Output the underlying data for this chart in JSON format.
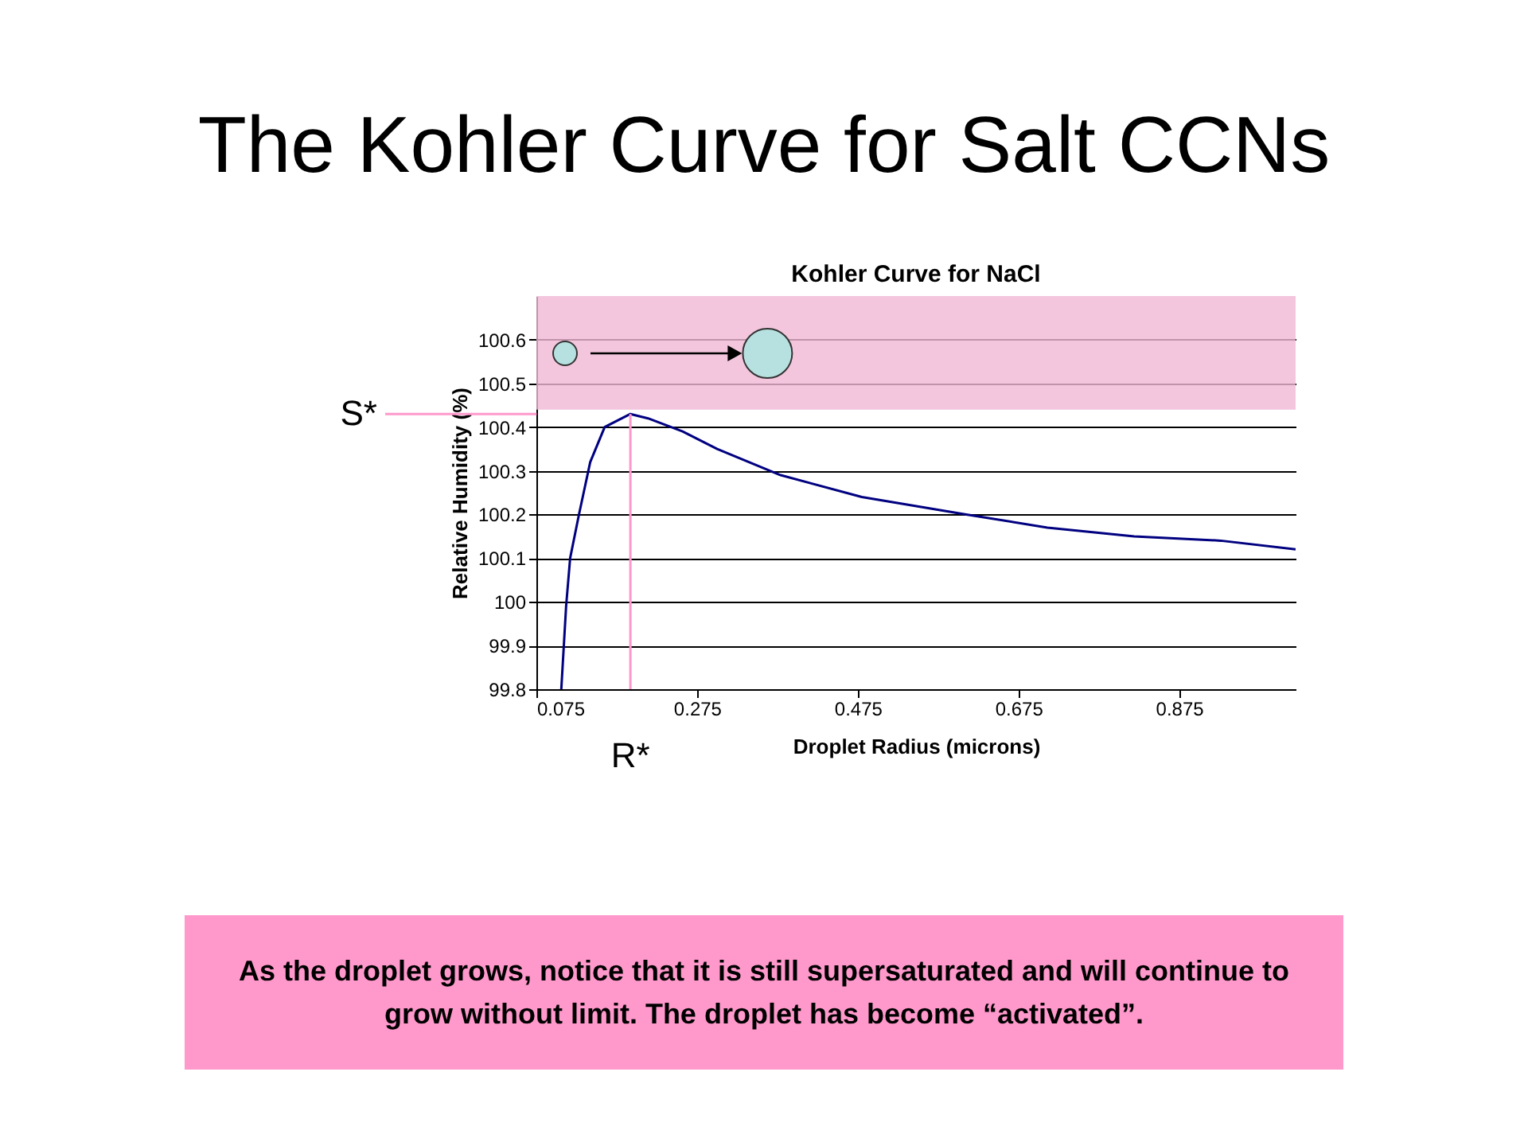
{
  "chart_data": {
    "type": "line",
    "title": "The Kohler Curve for Salt CCNs",
    "subtitle": "Kohler Curve for NaCl",
    "xlabel": "Droplet Radius (microns)",
    "ylabel": "Relative Humidity (%)",
    "series": [
      {
        "color": "#000080",
        "x": [
          0.106,
          0.112,
          0.117,
          0.128,
          0.142,
          0.16,
          0.192,
          0.214,
          0.257,
          0.3,
          0.379,
          0.48,
          0.61,
          0.711,
          0.819,
          0.927,
          1.02
        ],
        "values": [
          99.8,
          99.99,
          100.1,
          100.2,
          100.32,
          100.4,
          100.43,
          100.42,
          100.39,
          100.35,
          100.29,
          100.24,
          100.2,
          100.17,
          100.15,
          100.14,
          100.12
        ]
      }
    ],
    "xlim": [
      0.075,
      1.02
    ],
    "xticks": [
      0.075,
      0.275,
      0.475,
      0.675,
      0.875
    ],
    "ylim": [
      99.8,
      100.7
    ],
    "yticks": [
      99.8,
      99.9,
      100,
      100.1,
      100.2,
      100.3,
      100.4,
      100.5,
      100.6
    ],
    "grid": "y",
    "marker": "none",
    "line_style": "solid",
    "ref_lines": [
      {
        "axis": "y",
        "value": 100.43,
        "label": "S*",
        "color": "#ff99cc"
      },
      {
        "axis": "x",
        "value": 0.192,
        "label": "R*",
        "color": "#ff99cc"
      }
    ],
    "bands": [
      {
        "axis": "y",
        "from": 100.44,
        "to": 100.7,
        "color": "#f0b8d4"
      }
    ],
    "annotations": [
      "As the droplet grows, notice that it is still supersaturated and will continue to grow without limit.  The droplet has become “activated”."
    ]
  }
}
